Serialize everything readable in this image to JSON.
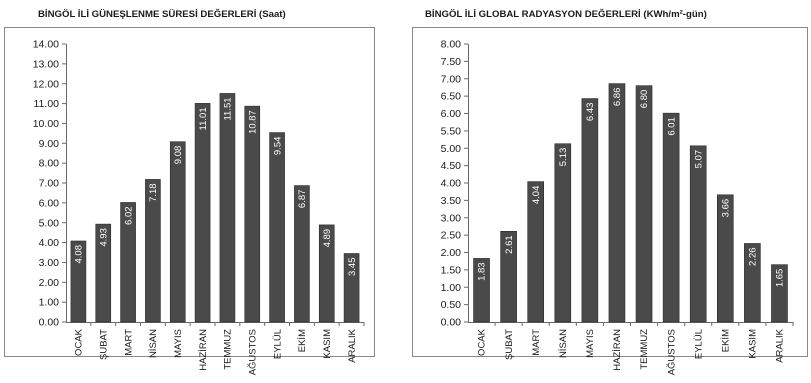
{
  "chart_data": [
    {
      "type": "bar",
      "title": "BİNGÖL İLİ GÜNEŞLENME SÜRESİ DEĞERLERİ (Saat)",
      "categories": [
        "OCAK",
        "ŞUBAT",
        "MART",
        "NİSAN",
        "MAYIS",
        "HAZİRAN",
        "TEMMUZ",
        "AĞUSTOS",
        "EYLÜL",
        "EKİM",
        "KASIM",
        "ARALIK"
      ],
      "values": [
        4.08,
        4.93,
        6.02,
        7.18,
        9.08,
        11.01,
        11.51,
        10.87,
        9.54,
        6.87,
        4.89,
        3.45
      ],
      "value_labels": [
        "4.08",
        "4.93",
        "6.02",
        "7.18",
        "9.08",
        "11.01",
        "11.51",
        "10.87",
        "9.54",
        "6.87",
        "4.89",
        "3.45"
      ],
      "yticks": [
        "0.00",
        "1.00",
        "2.00",
        "3.00",
        "4.00",
        "5.00",
        "6.00",
        "7.00",
        "8.00",
        "9.00",
        "10.00",
        "11.00",
        "12.00",
        "13.00",
        "14.00"
      ],
      "ylim": [
        0,
        14
      ],
      "grid": false,
      "bar_color": "#4a4a4a"
    },
    {
      "type": "bar",
      "title": "BİNGÖL İLİ GLOBAL RADYASYON DEĞERLERİ (KWh/m²-gün)",
      "categories": [
        "OCAK",
        "ŞUBAT",
        "MART",
        "NİSAN",
        "MAYIS",
        "HAZİRAN",
        "TEMMUZ",
        "AĞUSTOS",
        "EYLÜL",
        "EKİM",
        "KASIM",
        "ARALIK"
      ],
      "values": [
        1.83,
        2.61,
        4.04,
        5.13,
        6.43,
        6.86,
        6.8,
        6.01,
        5.07,
        3.66,
        2.26,
        1.65
      ],
      "value_labels": [
        "1.83",
        "2.61",
        "4.04",
        "5.13",
        "6.43",
        "6.86",
        "6.80",
        "6.01",
        "5.07",
        "3.66",
        "2.26",
        "1.65"
      ],
      "yticks": [
        "0.00",
        "0.50",
        "1.00",
        "1.50",
        "2.00",
        "2.50",
        "3.00",
        "3.50",
        "4.00",
        "4.50",
        "5.00",
        "5.50",
        "6.00",
        "6.50",
        "7.00",
        "7.50",
        "8.00"
      ],
      "ylim": [
        0,
        8
      ],
      "grid": false,
      "bar_color": "#4a4a4a"
    }
  ]
}
